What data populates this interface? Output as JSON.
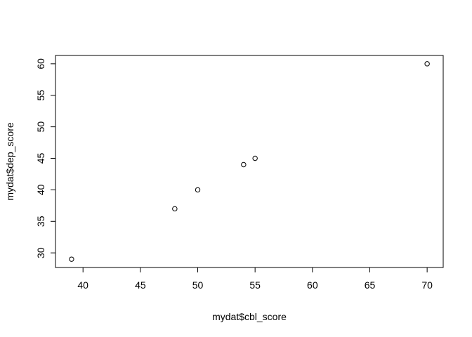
{
  "chart_data": {
    "type": "scatter",
    "xlabel": "mydat$cbl_score",
    "ylabel": "mydat$dep_score",
    "xlim": [
      37.6,
      71.4
    ],
    "ylim": [
      27.68,
      61.32
    ],
    "x_ticks": [
      40,
      45,
      50,
      55,
      60,
      65,
      70
    ],
    "y_ticks": [
      30,
      35,
      40,
      45,
      50,
      55,
      60
    ],
    "grid": false,
    "marker": "open-circle",
    "points": [
      {
        "x": 39,
        "y": 29
      },
      {
        "x": 48,
        "y": 37
      },
      {
        "x": 50,
        "y": 40
      },
      {
        "x": 54,
        "y": 44
      },
      {
        "x": 55,
        "y": 45
      },
      {
        "x": 70,
        "y": 60
      }
    ]
  }
}
